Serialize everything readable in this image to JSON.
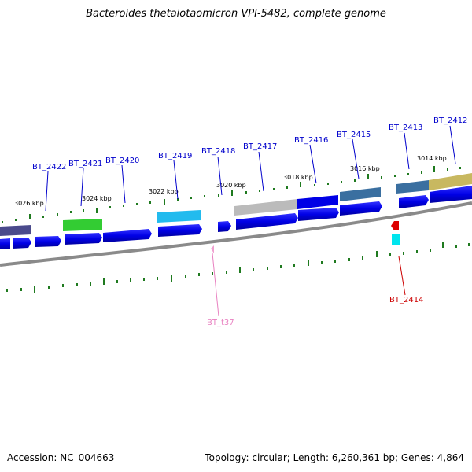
{
  "title": "Bacteroides thetaiotaomicron VPI-5482, complete genome",
  "accession": "Accession: NC_004663",
  "summary": "Topology: circular; Length: 6,260,361 bp; Genes: 4,864",
  "kbp_labels": [
    "3026 kbp",
    "3024 kbp",
    "3022 kbp",
    "3020 kbp",
    "3018 kbp",
    "3016 kbp",
    "3014 kbp"
  ],
  "gene_labels": [
    {
      "id": "l2422",
      "text": "BT_2422",
      "color": "#0000cc"
    },
    {
      "id": "l2421",
      "text": "BT_2421",
      "color": "#0000cc"
    },
    {
      "id": "l2420",
      "text": "BT_2420",
      "color": "#0000cc"
    },
    {
      "id": "l2419",
      "text": "BT_2419",
      "color": "#0000cc"
    },
    {
      "id": "l2418",
      "text": "BT_2418",
      "color": "#0000cc"
    },
    {
      "id": "l2417",
      "text": "BT_2417",
      "color": "#0000cc"
    },
    {
      "id": "l2416",
      "text": "BT_2416",
      "color": "#0000cc"
    },
    {
      "id": "l2415",
      "text": "BT_2415",
      "color": "#0000cc"
    },
    {
      "id": "l2413",
      "text": "BT_2413",
      "color": "#0000cc"
    },
    {
      "id": "l2412",
      "text": "BT_2412",
      "color": "#0000cc"
    },
    {
      "id": "lt37",
      "text": "BT_t37",
      "color": "#e87fc0"
    },
    {
      "id": "l2414",
      "text": "BT_2414",
      "color": "#cc0000"
    }
  ],
  "colors": {
    "cds": "#0000e6",
    "backbone": "#8a8a8a",
    "ticks": "#1f7a1f",
    "cog_purple": "#4a4a8c",
    "cog_green": "#33cc33",
    "cog_cyan": "#22bbee",
    "cog_grey": "#bbbbbb",
    "cog_steel": "#3a6fa0",
    "cog_khaki": "#c8b860",
    "trna": "#f0a0d0",
    "rrna_red": "#dd0000",
    "rrna_cyan": "#00e5ee"
  }
}
